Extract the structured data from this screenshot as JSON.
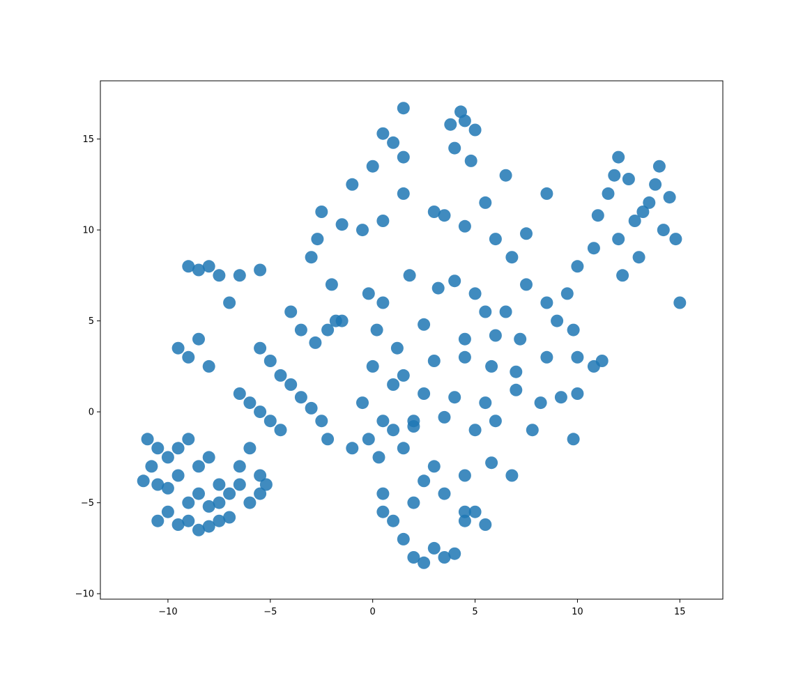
{
  "chart_data": {
    "type": "scatter",
    "title": "",
    "xlabel": "",
    "ylabel": "",
    "xlim": [
      -13.3,
      17.1
    ],
    "ylim": [
      -10.3,
      18.2
    ],
    "xticks": [
      -10,
      -5,
      0,
      5,
      10,
      15
    ],
    "xtick_labels": [
      "−10",
      "−5",
      "0",
      "5",
      "10",
      "15"
    ],
    "yticks": [
      -10,
      -5,
      0,
      5,
      10,
      15
    ],
    "ytick_labels": [
      "−10",
      "−5",
      "0",
      "5",
      "10",
      "15"
    ],
    "grid": false,
    "legend": "none",
    "point_color": "#1f77b4",
    "point_alpha": 0.3,
    "series": [
      {
        "x": [
          12.8,
          13.5,
          11.5,
          14.2,
          12.0,
          13.0,
          14.5,
          11.0,
          12.5,
          13.8,
          10.8,
          14.8,
          12.2,
          13.2,
          11.8,
          1.0,
          0.5,
          1.5,
          0.0,
          4.5,
          4.0,
          5.0,
          4.8,
          4.3,
          -2.7,
          -1.5,
          -0.5,
          0.5,
          1.5,
          3.0,
          3.5,
          4.5,
          6.0,
          7.5,
          6.8,
          5.5,
          -2.0,
          -0.2,
          0.5,
          1.8,
          3.2,
          4.0,
          5.0,
          6.5,
          7.5,
          8.5,
          9.5,
          -1.8,
          0.2,
          1.2,
          2.5,
          4.5,
          5.5,
          6.0,
          7.2,
          9.0,
          9.8,
          0.0,
          1.5,
          3.0,
          4.5,
          5.8,
          7.0,
          8.5,
          10.0,
          10.8,
          11.2,
          -0.5,
          1.0,
          2.5,
          4.0,
          5.5,
          7.0,
          8.2,
          9.2,
          10.0,
          0.5,
          2.0,
          3.5,
          5.0,
          6.0,
          7.8,
          9.8,
          0.3,
          1.5,
          3.0,
          4.5,
          5.8,
          6.8,
          0.5,
          2.0,
          2.5,
          3.5,
          4.5,
          -4.0,
          -3.5,
          -2.8,
          -2.2,
          -1.5,
          -5.5,
          -5.0,
          -4.5,
          -4.0,
          -3.5,
          -3.0,
          -2.5,
          -6.5,
          -6.0,
          -5.5,
          -5.0,
          -4.5,
          -2.2,
          -1.0,
          -0.2,
          1.0,
          2.0,
          -9.0,
          -8.5,
          -8.0,
          -7.5,
          -7.0,
          -6.5,
          -5.5,
          -9.5,
          -9.0,
          -8.5,
          -8.0,
          -11.0,
          -10.5,
          -10.0,
          -9.5,
          -9.0,
          -8.5,
          -8.0,
          -7.5,
          -6.5,
          -6.0,
          -5.5,
          -5.2,
          -11.2,
          -10.8,
          -10.5,
          -10.0,
          -9.5,
          -9.0,
          -8.5,
          -8.0,
          -7.5,
          -7.0,
          -6.5,
          -6.0,
          -5.5,
          -10.5,
          -10.0,
          -9.5,
          -9.0,
          -8.5,
          -8.0,
          -7.5,
          -7.0,
          0.5,
          1.0,
          1.5,
          2.0,
          2.5,
          3.0,
          3.5,
          4.0,
          4.5,
          5.0,
          5.5,
          -3.0,
          -2.5,
          -1.0,
          1.5,
          3.8,
          6.5,
          8.5,
          10.0,
          12.0,
          14.0,
          15.0
        ],
        "y": [
          10.5,
          11.5,
          12.0,
          10.0,
          9.5,
          8.5,
          11.8,
          10.8,
          12.8,
          12.5,
          9.0,
          9.5,
          7.5,
          11.0,
          13.0,
          14.8,
          15.3,
          14.0,
          13.5,
          16.0,
          14.5,
          15.5,
          13.8,
          16.5,
          9.5,
          10.3,
          10.0,
          10.5,
          12.0,
          11.0,
          10.8,
          10.2,
          9.5,
          9.8,
          8.5,
          11.5,
          7.0,
          6.5,
          6.0,
          7.5,
          6.8,
          7.2,
          6.5,
          5.5,
          7.0,
          6.0,
          6.5,
          5.0,
          4.5,
          3.5,
          4.8,
          4.0,
          5.5,
          4.2,
          4.0,
          5.0,
          4.5,
          2.5,
          2.0,
          2.8,
          3.0,
          2.5,
          2.2,
          3.0,
          3.0,
          2.5,
          2.8,
          0.5,
          1.5,
          1.0,
          0.8,
          0.5,
          1.2,
          0.5,
          0.8,
          1.0,
          -0.5,
          -0.8,
          -0.3,
          -1.0,
          -0.5,
          -1.0,
          -1.5,
          -2.5,
          -2.0,
          -3.0,
          -3.5,
          -2.8,
          -3.5,
          -4.5,
          -5.0,
          -3.8,
          -4.5,
          -5.5,
          5.5,
          4.5,
          3.8,
          4.5,
          5.0,
          3.5,
          2.8,
          2.0,
          1.5,
          0.8,
          0.2,
          -0.5,
          1.0,
          0.5,
          0.0,
          -0.5,
          -1.0,
          -1.5,
          -2.0,
          -1.5,
          -1.0,
          -0.5,
          8.0,
          7.8,
          8.0,
          7.5,
          6.0,
          7.5,
          7.8,
          3.5,
          3.0,
          4.0,
          2.5,
          -1.5,
          -2.0,
          -2.5,
          -2.0,
          -1.5,
          -3.0,
          -2.5,
          -4.0,
          -3.0,
          -2.0,
          -3.5,
          -4.0,
          -3.8,
          -3.0,
          -4.0,
          -4.2,
          -3.5,
          -5.0,
          -4.5,
          -5.2,
          -5.0,
          -4.5,
          -4.0,
          -5.0,
          -4.5,
          -6.0,
          -5.5,
          -6.2,
          -6.0,
          -6.5,
          -6.3,
          -6.0,
          -5.8,
          -5.5,
          -6.0,
          -7.0,
          -8.0,
          -8.3,
          -7.5,
          -8.0,
          -7.8,
          -6.0,
          -5.5,
          -6.2,
          8.5,
          11.0,
          12.5,
          16.7,
          15.8,
          13.0,
          12.0,
          8.0,
          14.0,
          13.5,
          6.0
        ]
      }
    ]
  }
}
